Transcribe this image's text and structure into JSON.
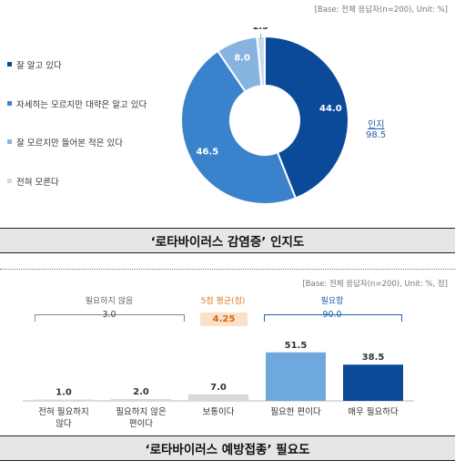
{
  "top": {
    "base_note": "[Base: 전체 응답자(n=200), Unit: %]",
    "caption": "‘로타바이러스 감염증’   인지도",
    "awareness_label": "인지",
    "awareness_value": "98.5"
  },
  "bottom": {
    "base_note": "[Base: 전체 응답자(n=200), Unit: %, 점]",
    "caption": "‘로타바이러스 예방접종’   필요도",
    "not_needed_label": "필요하지 않음",
    "not_needed_value": "3.0",
    "avg_label": "5점 평균(점)",
    "avg_value": "4.25",
    "needed_label": "필요함",
    "needed_value": "90.0"
  },
  "chart_data": [
    {
      "type": "pie",
      "title": "‘로타바이러스 감염증’ 인지도",
      "categories": [
        "잘 알고 있다",
        "자세히는 모르지만 대략은 알고 있다",
        "잘 모르지만 들어본 적은 있다",
        "전혀 모른다"
      ],
      "values": [
        44.0,
        46.5,
        8.0,
        1.5
      ],
      "value_labels": [
        "44.0",
        "46.5",
        "8.0",
        "1.5"
      ],
      "colors": [
        "#0b4a99",
        "#3b82cc",
        "#86b3df",
        "#c9dcef"
      ],
      "donut": true,
      "legend_position": "left"
    },
    {
      "type": "bar",
      "title": "‘로타바이러스 예방접종’ 필요도",
      "categories": [
        "전혀 필요하지 않다",
        "필요하지 않은 편이다",
        "보통이다",
        "필요한 편이다",
        "매우 필요하다"
      ],
      "values": [
        1.0,
        2.0,
        7.0,
        51.5,
        38.5
      ],
      "value_labels": [
        "1.0",
        "2.0",
        "7.0",
        "51.5",
        "38.5"
      ],
      "colors": [
        "#d9d9d9",
        "#d9d9d9",
        "#d9d9d9",
        "#6fa8dc",
        "#0b4a99"
      ],
      "ylim": [
        0,
        60
      ]
    }
  ],
  "colors": {
    "caption_bg": "#e6e6e6",
    "awareness_text": "#1f5fae",
    "needed_text": "#1f5fae",
    "avg_text": "#d46a10",
    "avg_bg": "#fde0c8"
  }
}
